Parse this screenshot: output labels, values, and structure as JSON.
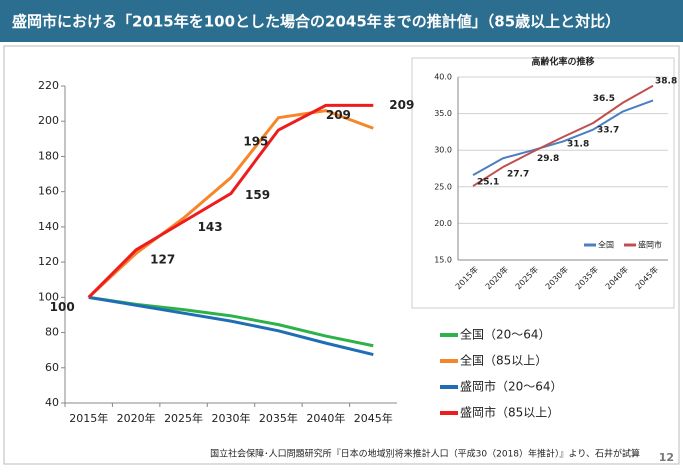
{
  "header": {
    "title": "盛岡市における「2015年を100とした場合の2045年までの推計値」（85歳以上と対比）"
  },
  "footer": {
    "source": "国立社会保障･人口問題研究所『日本の地域別将来推計人口（平成30（2018）年推計）』より、石井が試算",
    "page_number": "12"
  },
  "chart_data": [
    {
      "type": "line",
      "categories": [
        "2015年",
        "2020年",
        "2025年",
        "2030年",
        "2035年",
        "2040年",
        "2045年"
      ],
      "ylim": [
        40,
        220
      ],
      "yticks": [
        40,
        60,
        80,
        100,
        120,
        140,
        160,
        180,
        200,
        220
      ],
      "grid": false,
      "legend": "right",
      "series": [
        {
          "name": "全国（20～64）",
          "color": "#2db24a",
          "values": [
            100,
            96,
            93,
            89.5,
            84.5,
            78,
            72.5
          ]
        },
        {
          "name": "全国（85以上）",
          "color": "#f5862a",
          "values": [
            100,
            125,
            145,
            168,
            202,
            206,
            196
          ]
        },
        {
          "name": "盛岡市（20～64）",
          "color": "#1f6eb5",
          "values": [
            100,
            95.5,
            91,
            86.5,
            81,
            74,
            67.5
          ]
        },
        {
          "name": "盛岡市（85以上）",
          "color": "#ee1c1c",
          "values": [
            100,
            127,
            143,
            159,
            195,
            209,
            209
          ],
          "data_labels": true
        }
      ]
    },
    {
      "type": "line",
      "title": "高齢化率の推移",
      "categories": [
        "2015年",
        "2020年",
        "2025年",
        "2030年",
        "2035年",
        "2040年",
        "2045年"
      ],
      "ylim": [
        15,
        40
      ],
      "yticks": [
        {
          "value": 15,
          "label": "15.0"
        },
        {
          "value": 20,
          "label": "20.0"
        },
        {
          "value": 25,
          "label": "25.0"
        },
        {
          "value": 30,
          "label": "30.0"
        },
        {
          "value": 35,
          "label": "35.0"
        },
        {
          "value": 40,
          "label": "40.0"
        }
      ],
      "grid": true,
      "legend": "lower right",
      "series": [
        {
          "name": "全国",
          "color": "#4a7fc1",
          "values": [
            26.6,
            28.9,
            30.0,
            31.2,
            32.8,
            35.3,
            36.8
          ]
        },
        {
          "name": "盛岡市",
          "color": "#c0504d",
          "values": [
            25.1,
            27.7,
            29.8,
            31.8,
            33.7,
            36.5,
            38.8
          ],
          "data_labels": true
        }
      ]
    }
  ]
}
